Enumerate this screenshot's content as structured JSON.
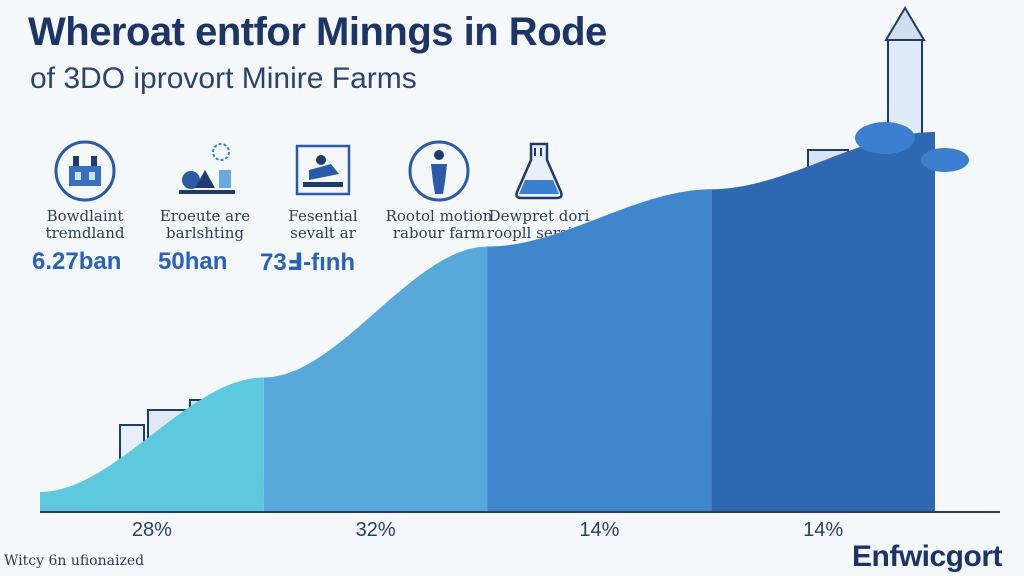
{
  "header": {
    "title": "Wheroat entfor Minngs in Rode",
    "subtitle": "of 3DO iprovort Minire Farms"
  },
  "stats": [
    {
      "icon": "factory-icon",
      "label": "Bowdlaint\ntremdland",
      "value": "6.27ban"
    },
    {
      "icon": "miner-icon",
      "label": "Eroeute are\nbarlshting",
      "value": "50han"
    },
    {
      "icon": "excavator-icon",
      "label": "Fesential\nsevalt ar",
      "value": "73Ⅎ-fınh"
    },
    {
      "icon": "person-icon",
      "label": "Rootol motion\nrabour farm",
      "value": ""
    },
    {
      "icon": "flask-icon",
      "label": "Dewpret dori\nroopll sersion",
      "value": ""
    }
  ],
  "chart_data": {
    "type": "area",
    "categories": [
      "28%",
      "32%",
      "14%",
      "14%"
    ],
    "values": [
      28,
      32,
      14,
      14
    ],
    "title": "",
    "xlabel": "",
    "ylabel": "",
    "colors": [
      "#5ec9de",
      "#58a8dc",
      "#3f86cc",
      "#2e68b3"
    ]
  },
  "footer": {
    "left_text": "Witcy 6n ufionaized",
    "brand": "Enfwicgort"
  }
}
